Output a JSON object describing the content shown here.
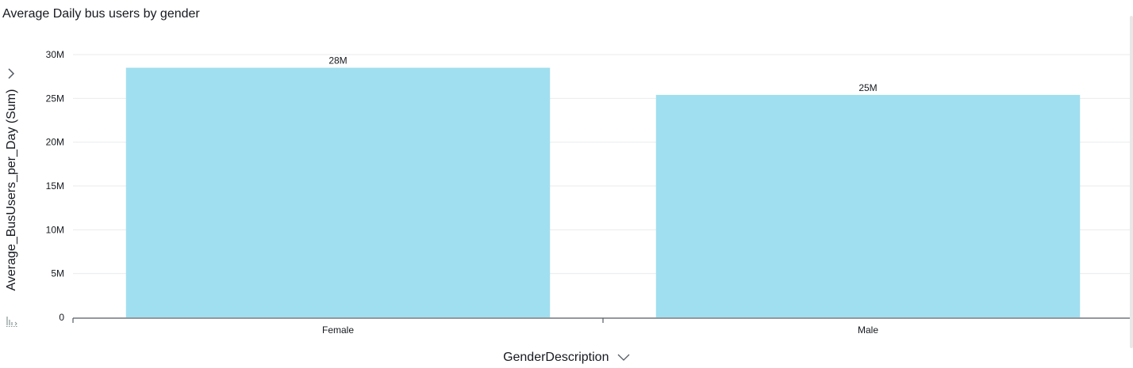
{
  "visual": {
    "title": "Average Daily bus users by gender"
  },
  "chart_data": {
    "type": "bar",
    "title": "Average Daily bus users by gender",
    "xlabel": "GenderDescription",
    "ylabel": "Average_BusUsers_per_Day (Sum)",
    "categories": [
      "Female",
      "Male"
    ],
    "values": [
      28500000,
      25400000
    ],
    "data_labels": [
      "28M",
      "25M"
    ],
    "ylim": [
      0,
      30000000
    ],
    "y_ticks": [
      0,
      5000000,
      10000000,
      15000000,
      20000000,
      25000000,
      30000000
    ],
    "y_tick_labels": [
      "0",
      "5M",
      "10M",
      "15M",
      "20M",
      "25M",
      "30M"
    ],
    "grid": true,
    "bar_color": "#a0dfef",
    "grid_color": "#e9ebed",
    "axis_color": "#545b64"
  },
  "icons": {
    "y_axis_menu": "chevron-right-icon",
    "x_axis_menu": "chevron-down-icon",
    "sort": "sort-icon"
  }
}
